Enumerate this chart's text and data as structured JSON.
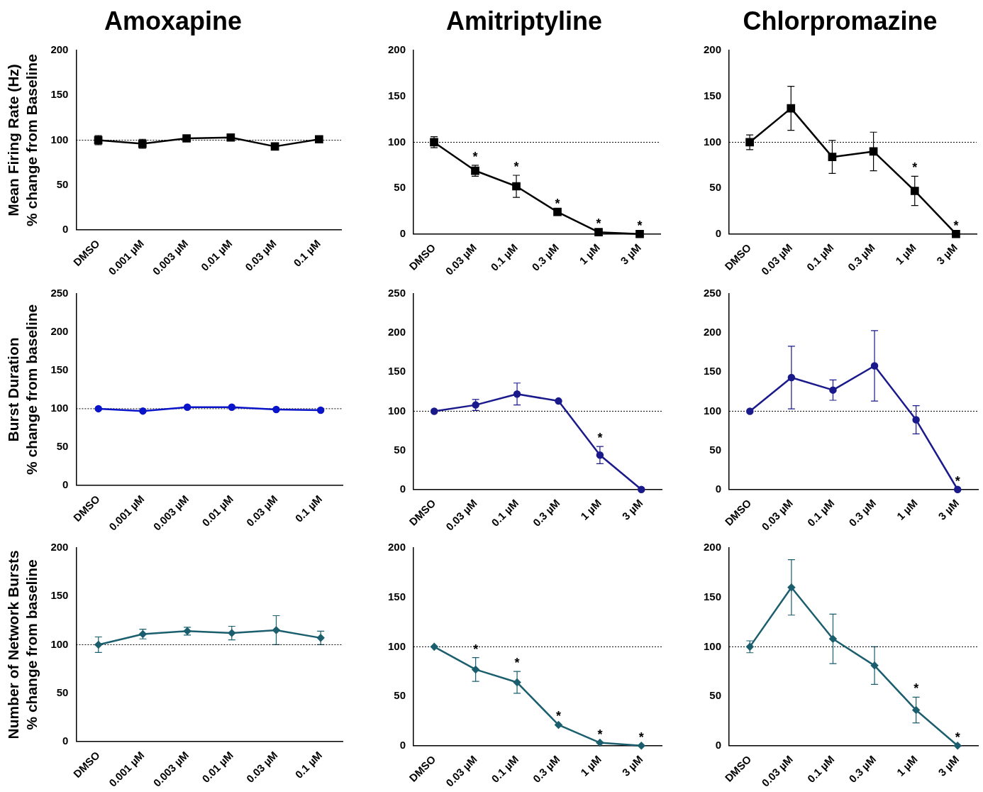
{
  "chart_data": [
    {
      "type": "line",
      "title": "Amoxapine",
      "ylabel": "Mean Firing Rate (Hz)\n% change from Baseline",
      "categories": [
        "DMSO",
        "0.001 µM",
        "0.003 µM",
        "0.01 µM",
        "0.03 µM",
        "0.1 µM"
      ],
      "series": [
        {
          "color": "#000000",
          "values": [
            100,
            96,
            102,
            103,
            93,
            101
          ],
          "errors": [
            5,
            5,
            null,
            null,
            null,
            null
          ]
        }
      ],
      "ylim": [
        0,
        200
      ],
      "yticks": [
        0,
        50,
        100,
        150,
        200
      ],
      "marker": "square",
      "ref_lines": [
        {
          "axis": "y",
          "value": 100,
          "line_style": "dotted"
        }
      ]
    },
    {
      "type": "line",
      "title": "Amitriptyline",
      "categories": [
        "DMSO",
        "0.03 µM",
        "0.1 µM",
        "0.3 µM",
        "1 µM",
        "3 µM"
      ],
      "series": [
        {
          "color": "#000000",
          "values": [
            100,
            69,
            52,
            24,
            2,
            0
          ],
          "errors": [
            6,
            6,
            12,
            null,
            null,
            null
          ]
        }
      ],
      "ylim": [
        0,
        200
      ],
      "yticks": [
        0,
        50,
        100,
        150,
        200
      ],
      "marker": "square",
      "ref_lines": [
        {
          "axis": "y",
          "value": 100,
          "line_style": "dotted"
        }
      ],
      "annotations": [
        {
          "text": "*",
          "x": "0.03 µM",
          "y": 69
        },
        {
          "text": "*",
          "x": "0.1 µM",
          "y": 52
        },
        {
          "text": "*",
          "x": "0.3 µM",
          "y": 24
        },
        {
          "text": "*",
          "x": "1 µM",
          "y": 2
        },
        {
          "text": "*",
          "x": "3 µM",
          "y": 0
        }
      ]
    },
    {
      "type": "line",
      "title": "Chlorpromazine",
      "categories": [
        "DMSO",
        "0.03 µM",
        "0.1 µM",
        "0.3 µM",
        "1 µM",
        "3 µM"
      ],
      "series": [
        {
          "color": "#000000",
          "values": [
            100,
            137,
            84,
            90,
            47,
            0
          ],
          "errors": [
            8,
            24,
            18,
            21,
            16,
            null
          ]
        }
      ],
      "ylim": [
        0,
        200
      ],
      "yticks": [
        0,
        50,
        100,
        150,
        200
      ],
      "marker": "square",
      "ref_lines": [
        {
          "axis": "y",
          "value": 100,
          "line_style": "dotted"
        }
      ],
      "annotations": [
        {
          "text": "*",
          "x": "1 µM",
          "y": 47
        },
        {
          "text": "*",
          "x": "3 µM",
          "y": 0
        }
      ]
    },
    {
      "type": "line",
      "ylabel": "Burst Duration\n% change from baseline",
      "categories": [
        "DMSO",
        "0.001 µM",
        "0.003 µM",
        "0.01 µM",
        "0.03 µM",
        "0.1 µM"
      ],
      "series": [
        {
          "color": "#0a14c8",
          "values": [
            100,
            97,
            102,
            102,
            99,
            98
          ],
          "errors": [
            null,
            null,
            null,
            null,
            null,
            null
          ]
        }
      ],
      "ylim": [
        0,
        250
      ],
      "yticks": [
        0,
        50,
        100,
        150,
        200,
        250
      ],
      "marker": "circle",
      "ref_lines": [
        {
          "axis": "y",
          "value": 100,
          "line_style": "dotted"
        }
      ]
    },
    {
      "type": "line",
      "categories": [
        "DMSO",
        "0.03 µM",
        "0.1 µM",
        "0.3 µM",
        "1 µM",
        "3 µM"
      ],
      "series": [
        {
          "color": "#1a1a8c",
          "values": [
            100,
            108,
            122,
            113,
            44,
            0
          ],
          "errors": [
            null,
            7,
            14,
            null,
            11,
            null
          ]
        }
      ],
      "ylim": [
        0,
        250
      ],
      "yticks": [
        0,
        50,
        100,
        150,
        200,
        250
      ],
      "marker": "circle",
      "ref_lines": [
        {
          "axis": "y",
          "value": 100,
          "line_style": "dotted"
        }
      ],
      "annotations": [
        {
          "text": "*",
          "x": "1 µM",
          "y": 44
        }
      ]
    },
    {
      "type": "line",
      "categories": [
        "DMSO",
        "0.03 µM",
        "0.1 µM",
        "0.3 µM",
        "1 µM",
        "3 µM"
      ],
      "series": [
        {
          "color": "#1a1a8c",
          "values": [
            100,
            143,
            127,
            158,
            89,
            0
          ],
          "errors": [
            null,
            40,
            13,
            45,
            18,
            null
          ]
        }
      ],
      "ylim": [
        0,
        250
      ],
      "yticks": [
        0,
        50,
        100,
        150,
        200,
        250
      ],
      "marker": "circle",
      "ref_lines": [
        {
          "axis": "y",
          "value": 100,
          "line_style": "dotted"
        }
      ],
      "annotations": [
        {
          "text": "*",
          "x": "3 µM",
          "y": 0
        }
      ]
    },
    {
      "type": "line",
      "ylabel": "Number of Network Bursts\n% change from baseline",
      "categories": [
        "DMSO",
        "0.001 µM",
        "0.003 µM",
        "0.01 µM",
        "0.03 µM",
        "0.1 µM"
      ],
      "series": [
        {
          "color": "#1b5e6e",
          "values": [
            100,
            111,
            114,
            112,
            115,
            107
          ],
          "errors": [
            8,
            5,
            4,
            7,
            15,
            7
          ]
        }
      ],
      "ylim": [
        0,
        200
      ],
      "yticks": [
        0,
        50,
        100,
        150,
        200
      ],
      "marker": "diamond",
      "ref_lines": [
        {
          "axis": "y",
          "value": 100,
          "line_style": "dotted"
        }
      ]
    },
    {
      "type": "line",
      "categories": [
        "DMSO",
        "0.03 µM",
        "0.1 µM",
        "0.3 µM",
        "1 µM",
        "3 µM"
      ],
      "series": [
        {
          "color": "#1b5e6e",
          "values": [
            100,
            77,
            64,
            21,
            3,
            0
          ],
          "errors": [
            null,
            12,
            11,
            null,
            null,
            null
          ]
        }
      ],
      "ylim": [
        0,
        200
      ],
      "yticks": [
        0,
        50,
        100,
        150,
        200
      ],
      "marker": "diamond",
      "ref_lines": [
        {
          "axis": "y",
          "value": 100,
          "line_style": "dotted"
        }
      ],
      "annotations": [
        {
          "text": "*",
          "x": "0.03 µM",
          "y": 77
        },
        {
          "text": "*",
          "x": "0.1 µM",
          "y": 64
        },
        {
          "text": "*",
          "x": "0.3 µM",
          "y": 21
        },
        {
          "text": "*",
          "x": "1 µM",
          "y": 3
        },
        {
          "text": "*",
          "x": "3 µM",
          "y": 0
        }
      ]
    },
    {
      "type": "line",
      "categories": [
        "DMSO",
        "0.03 µM",
        "0.1 µM",
        "0.3 µM",
        "1 µM",
        "3 µM"
      ],
      "series": [
        {
          "color": "#1b5e6e",
          "values": [
            100,
            160,
            108,
            81,
            36,
            0
          ],
          "errors": [
            6,
            28,
            25,
            19,
            13,
            null
          ]
        }
      ],
      "ylim": [
        0,
        200
      ],
      "yticks": [
        0,
        50,
        100,
        150,
        200
      ],
      "marker": "diamond",
      "ref_lines": [
        {
          "axis": "y",
          "value": 100,
          "line_style": "dotted"
        }
      ],
      "annotations": [
        {
          "text": "*",
          "x": "1 µM",
          "y": 36
        },
        {
          "text": "*",
          "x": "3 µM",
          "y": 0
        }
      ]
    }
  ]
}
